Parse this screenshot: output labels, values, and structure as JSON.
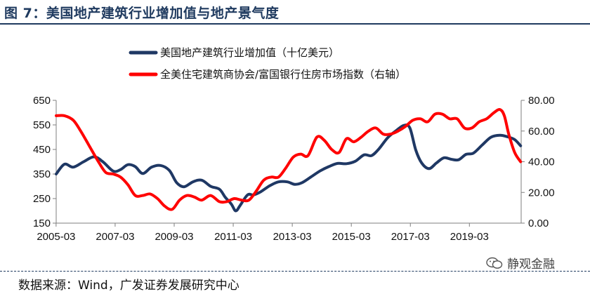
{
  "header": {
    "title": "图 7：美国地产建筑行业增加值与地产景气度"
  },
  "footer": {
    "source": "数据来源：Wind，广发证券发展研究中心",
    "watermark": "静观金融",
    "watermark_icon": "wechat-icon"
  },
  "chart_data": {
    "type": "line",
    "title": "",
    "xlabel": "",
    "ylabel": "",
    "x_ticks": [
      "2005-03",
      "2007-03",
      "2009-03",
      "2011-03",
      "2013-03",
      "2015-03",
      "2017-03",
      "2019-03"
    ],
    "xlim": [
      2005.17,
      2020.92
    ],
    "ylim_left": [
      150,
      650
    ],
    "ylim_right": [
      0,
      80
    ],
    "y_ticks_left": [
      "650",
      "550",
      "450",
      "350",
      "250",
      "150"
    ],
    "y_ticks_right": [
      "80.00",
      "60.00",
      "40.00",
      "20.00",
      "0.00"
    ],
    "grid": false,
    "legend_position": "top-center",
    "series": [
      {
        "name": "美国地产建筑行业增加值（十亿美元）",
        "axis": "left",
        "color": "#1f3864",
        "x": [
          2005.17,
          2005.45,
          2005.75,
          2006.1,
          2006.45,
          2006.75,
          2007.1,
          2007.35,
          2007.6,
          2007.85,
          2008.1,
          2008.4,
          2008.7,
          2009.0,
          2009.25,
          2009.5,
          2009.8,
          2010.1,
          2010.4,
          2010.7,
          2010.9,
          2011.1,
          2011.25,
          2011.4,
          2011.65,
          2011.85,
          2012.1,
          2012.4,
          2012.7,
          2013.0,
          2013.25,
          2013.5,
          2013.8,
          2014.1,
          2014.4,
          2014.7,
          2015.0,
          2015.3,
          2015.6,
          2015.85,
          2016.1,
          2016.4,
          2016.7,
          2016.95,
          2017.15,
          2017.35,
          2017.55,
          2017.8,
          2018.05,
          2018.3,
          2018.55,
          2018.8,
          2019.05,
          2019.3,
          2019.6,
          2019.9,
          2020.2,
          2020.45,
          2020.7,
          2020.9
        ],
        "values": [
          350,
          390,
          378,
          400,
          420,
          400,
          362,
          368,
          388,
          380,
          352,
          378,
          385,
          365,
          315,
          298,
          318,
          325,
          300,
          288,
          255,
          228,
          200,
          222,
          265,
          265,
          278,
          302,
          318,
          318,
          308,
          315,
          338,
          362,
          380,
          393,
          392,
          402,
          428,
          425,
          452,
          498,
          528,
          548,
          538,
          448,
          395,
          372,
          395,
          416,
          410,
          408,
          430,
          435,
          468,
          500,
          508,
          502,
          490,
          465
        ]
      },
      {
        "name": "全美住宅建筑商协会/富国银行住房市场指数（右轴）",
        "axis": "right",
        "color": "#ff0000",
        "x": [
          2005.17,
          2005.45,
          2005.75,
          2006.0,
          2006.3,
          2006.6,
          2006.85,
          2007.1,
          2007.35,
          2007.6,
          2007.85,
          2008.1,
          2008.35,
          2008.6,
          2008.85,
          2009.1,
          2009.35,
          2009.6,
          2009.85,
          2010.1,
          2010.4,
          2010.7,
          2010.95,
          2011.2,
          2011.45,
          2011.7,
          2011.95,
          2012.2,
          2012.45,
          2012.7,
          2012.95,
          2013.2,
          2013.45,
          2013.7,
          2014.0,
          2014.25,
          2014.5,
          2014.75,
          2015.0,
          2015.25,
          2015.5,
          2015.75,
          2016.0,
          2016.25,
          2016.5,
          2016.75,
          2017.0,
          2017.25,
          2017.5,
          2017.75,
          2018.0,
          2018.25,
          2018.5,
          2018.75,
          2019.0,
          2019.25,
          2019.5,
          2019.75,
          2020.0,
          2020.2,
          2020.35,
          2020.5,
          2020.7,
          2020.9
        ],
        "values": [
          70,
          70,
          67,
          60,
          50,
          40,
          33,
          32,
          30,
          25,
          18,
          18,
          19,
          16,
          11,
          9,
          15,
          18,
          17,
          15,
          18,
          14,
          14,
          16,
          15,
          15,
          21,
          28,
          30,
          30,
          36,
          43,
          45,
          44,
          56,
          54,
          48,
          46,
          55,
          53,
          56,
          60,
          62,
          58,
          58,
          60,
          63,
          67,
          68,
          66,
          71,
          71,
          68,
          68,
          62,
          62,
          66,
          68,
          72,
          74,
          70,
          58,
          46,
          40
        ]
      }
    ]
  }
}
